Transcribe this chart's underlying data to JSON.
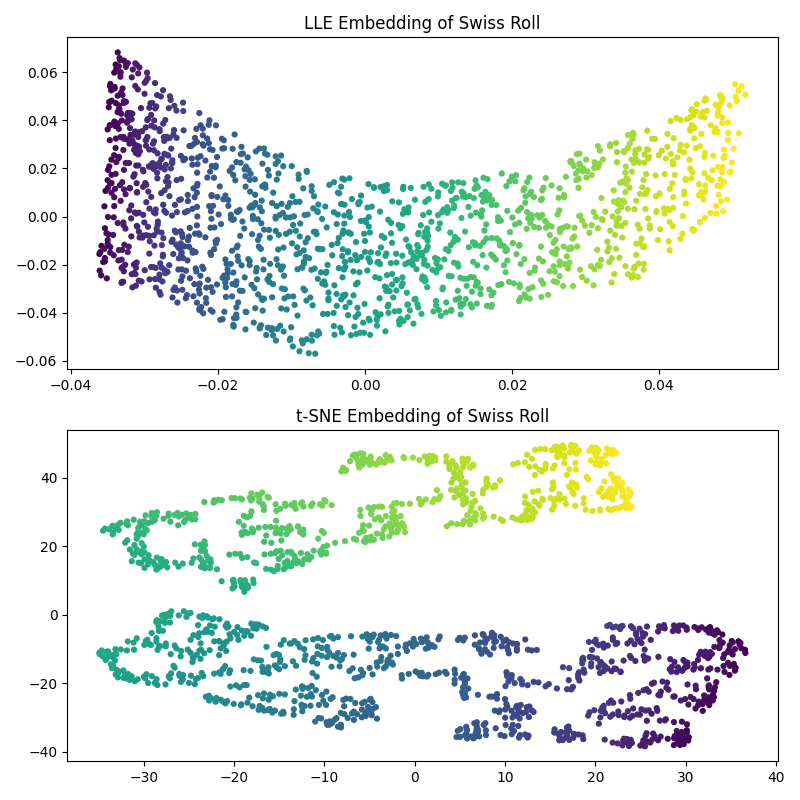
{
  "title1": "LLE Embedding of Swiss Roll",
  "title2": "t-SNE Embedding of Swiss Roll",
  "n_samples": 1500,
  "random_state": 42,
  "colormap": "viridis",
  "marker_size": 20,
  "alpha": 1.0,
  "background_color": "#ffffff",
  "fig_width": 8.0,
  "fig_height": 8.0,
  "dpi": 100,
  "lle_n_neighbors": 10,
  "tsne_perplexity": 30,
  "tsne_random_state": 0
}
